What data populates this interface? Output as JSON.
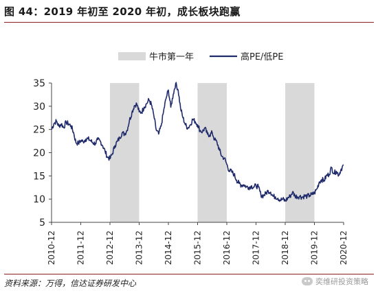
{
  "page": {
    "title": "图 44：2019 年初至 2020 年初，成长板块跑赢",
    "source": "资料来源：万得，信达证券研发中心",
    "watermark": "奕维研投资策略"
  },
  "chart_data": {
    "type": "line",
    "title": "",
    "xlabel": "",
    "ylabel": "",
    "ylim": [
      5,
      35
    ],
    "yticks": [
      5,
      10,
      15,
      20,
      25,
      30,
      35
    ],
    "xlim": [
      "2010-12",
      "2020-12"
    ],
    "xticks": [
      "2010-12",
      "2011-12",
      "2012-12",
      "2013-12",
      "2014-12",
      "2015-12",
      "2016-12",
      "2017-12",
      "2018-12",
      "2019-12",
      "2020-12"
    ],
    "legend": {
      "placement": "top-center",
      "bull_label": "牛市第一年"
    },
    "bull_periods": [
      [
        "2012-12",
        "2013-12"
      ],
      [
        "2015-12",
        "2016-12"
      ],
      [
        "2018-12",
        "2019-12"
      ]
    ],
    "grid": false,
    "colors": {
      "line": "#1f2a6b",
      "band": "#d9d9d9",
      "axis": "#444444"
    },
    "series": [
      {
        "name": "高PE/低PE",
        "x": [
          "2010-12",
          "2011-01",
          "2011-02",
          "2011-03",
          "2011-04",
          "2011-05",
          "2011-06",
          "2011-07",
          "2011-08",
          "2011-09",
          "2011-10",
          "2011-11",
          "2011-12",
          "2012-01",
          "2012-02",
          "2012-03",
          "2012-04",
          "2012-05",
          "2012-06",
          "2012-07",
          "2012-08",
          "2012-09",
          "2012-10",
          "2012-11",
          "2012-12",
          "2013-01",
          "2013-02",
          "2013-03",
          "2013-04",
          "2013-05",
          "2013-06",
          "2013-07",
          "2013-08",
          "2013-09",
          "2013-10",
          "2013-11",
          "2013-12",
          "2014-01",
          "2014-02",
          "2014-03",
          "2014-04",
          "2014-05",
          "2014-06",
          "2014-07",
          "2014-08",
          "2014-09",
          "2014-10",
          "2014-11",
          "2014-12",
          "2015-01",
          "2015-02",
          "2015-03",
          "2015-04",
          "2015-05",
          "2015-06",
          "2015-07",
          "2015-08",
          "2015-09",
          "2015-10",
          "2015-11",
          "2015-12",
          "2016-01",
          "2016-02",
          "2016-03",
          "2016-04",
          "2016-05",
          "2016-06",
          "2016-07",
          "2016-08",
          "2016-09",
          "2016-10",
          "2016-11",
          "2016-12",
          "2017-01",
          "2017-02",
          "2017-03",
          "2017-04",
          "2017-05",
          "2017-06",
          "2017-07",
          "2017-08",
          "2017-09",
          "2017-10",
          "2017-11",
          "2017-12",
          "2018-01",
          "2018-02",
          "2018-03",
          "2018-04",
          "2018-05",
          "2018-06",
          "2018-07",
          "2018-08",
          "2018-09",
          "2018-10",
          "2018-11",
          "2018-12",
          "2019-01",
          "2019-02",
          "2019-03",
          "2019-04",
          "2019-05",
          "2019-06",
          "2019-07",
          "2019-08",
          "2019-09",
          "2019-10",
          "2019-11",
          "2019-12",
          "2020-01",
          "2020-02",
          "2020-03",
          "2020-04",
          "2020-05",
          "2020-06",
          "2020-07",
          "2020-08",
          "2020-09",
          "2020-10",
          "2020-11",
          "2020-12"
        ],
        "values": [
          25.0,
          26.3,
          26.8,
          25.7,
          26.2,
          25.4,
          26.6,
          26.2,
          25.8,
          24.4,
          22.2,
          22.0,
          22.6,
          22.4,
          22.9,
          23.0,
          22.6,
          22.1,
          22.0,
          22.8,
          22.5,
          21.5,
          20.3,
          19.0,
          18.7,
          19.8,
          21.5,
          22.4,
          23.2,
          24.3,
          24.0,
          24.8,
          26.9,
          28.6,
          30.1,
          30.5,
          28.8,
          28.7,
          29.8,
          30.5,
          31.4,
          30.4,
          28.0,
          24.9,
          24.0,
          25.7,
          28.8,
          31.6,
          33.5,
          29.8,
          32.6,
          34.9,
          33.5,
          29.6,
          27.5,
          26.0,
          25.3,
          26.0,
          27.2,
          26.7,
          26.0,
          24.8,
          24.5,
          25.3,
          24.0,
          23.8,
          24.3,
          22.8,
          22.2,
          20.5,
          19.2,
          18.8,
          17.5,
          16.1,
          15.9,
          15.3,
          14.1,
          13.4,
          13.0,
          13.1,
          12.7,
          12.5,
          12.8,
          12.6,
          12.9,
          12.6,
          10.9,
          10.7,
          11.2,
          11.8,
          11.5,
          10.6,
          10.5,
          10.2,
          9.8,
          10.0,
          9.6,
          10.2,
          10.6,
          11.5,
          10.7,
          10.5,
          10.6,
          10.4,
          10.7,
          10.6,
          10.8,
          11.0,
          11.3,
          12.2,
          13.7,
          14.2,
          14.0,
          15.1,
          15.3,
          16.8,
          15.6,
          16.0,
          15.2,
          16.5,
          17.3
        ]
      }
    ]
  }
}
